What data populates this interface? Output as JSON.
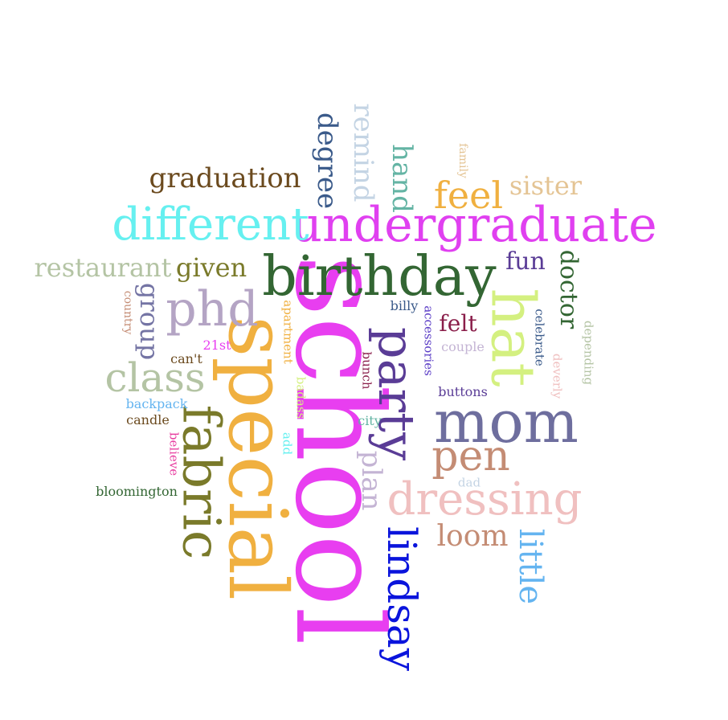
{
  "words": [
    {
      "text": "school",
      "color": "#e83ef0"
    },
    {
      "text": "special",
      "color": "#f0b040"
    },
    {
      "text": "birthday",
      "color": "#336633"
    },
    {
      "text": "undergraduate",
      "color": "#e040f0"
    },
    {
      "text": "party",
      "color": "#5a3c96"
    },
    {
      "text": "hat",
      "color": "#d4f080"
    },
    {
      "text": "fabric",
      "color": "#7a7a2a"
    },
    {
      "text": "mom",
      "color": "#6e6e9e"
    },
    {
      "text": "different",
      "color": "#66f0f0"
    },
    {
      "text": "lindsay",
      "color": "#0a14dc"
    },
    {
      "text": "dressing",
      "color": "#f0c0c0"
    },
    {
      "text": "class",
      "color": "#b4c4a4"
    },
    {
      "text": "phd",
      "color": "#b4a4c4"
    },
    {
      "text": "pen",
      "color": "#c48c74"
    },
    {
      "text": "graduation",
      "color": "#6b4a1e"
    },
    {
      "text": "feel",
      "color": "#f0b040"
    },
    {
      "text": "little",
      "color": "#64b4f0"
    },
    {
      "text": "remind",
      "color": "#c4d4e4"
    },
    {
      "text": "degree",
      "color": "#3a5a8a"
    },
    {
      "text": "hand",
      "color": "#64b4a4"
    },
    {
      "text": "restaurant",
      "color": "#b4c4a4"
    },
    {
      "text": "given",
      "color": "#7a7a2a"
    },
    {
      "text": "loom",
      "color": "#c48c74"
    },
    {
      "text": "sister",
      "color": "#e4c494"
    },
    {
      "text": "doctor",
      "color": "#336633"
    },
    {
      "text": "group",
      "color": "#7474a4"
    },
    {
      "text": "fun",
      "color": "#5a3c96"
    },
    {
      "text": "plan",
      "color": "#c4b4d4"
    },
    {
      "text": "felt",
      "color": "#8a1e4a"
    },
    {
      "text": "backpack",
      "color": "#64b4f0"
    },
    {
      "text": "candle",
      "color": "#6b4a1e"
    },
    {
      "text": "bloomington",
      "color": "#336633"
    },
    {
      "text": "billy",
      "color": "#3a5a8a"
    },
    {
      "text": "couple",
      "color": "#c4b4d4"
    },
    {
      "text": "buttons",
      "color": "#5a3c96"
    },
    {
      "text": "21st",
      "color": "#e83ef0"
    },
    {
      "text": "can't",
      "color": "#6b4a1e"
    },
    {
      "text": "city",
      "color": "#64b4a4"
    },
    {
      "text": "dad",
      "color": "#c4d4e4"
    },
    {
      "text": "apartment",
      "color": "#f0b040"
    },
    {
      "text": "badass",
      "color": "#d4f080"
    },
    {
      "text": "add",
      "color": "#66f0f0"
    },
    {
      "text": "believe",
      "color": "#e83ea0"
    },
    {
      "text": "country",
      "color": "#c48c74"
    },
    {
      "text": "accessories",
      "color": "#5a3cc6"
    },
    {
      "text": "bunch",
      "color": "#8a1e4a"
    },
    {
      "text": "celebrate",
      "color": "#3a5a8a"
    },
    {
      "text": "deverly",
      "color": "#f0c0c0"
    },
    {
      "text": "depending",
      "color": "#b4c4a4"
    },
    {
      "text": "family",
      "color": "#e4c494"
    }
  ]
}
